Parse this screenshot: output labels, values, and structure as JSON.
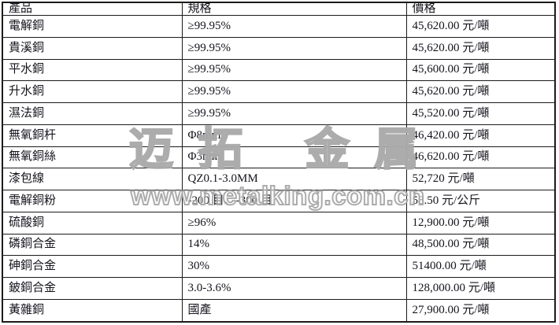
{
  "watermark": {
    "brand": "迈拓 金属",
    "url": "www.metalking.com.cn"
  },
  "colors": {
    "table_border": "#1b1b1b",
    "text": "#14141c",
    "watermark_gray": "#a8a8a8",
    "background": "#ffffff"
  },
  "table": {
    "columns": [
      "產品",
      "規格",
      "價格"
    ],
    "rows": [
      {
        "product": "電解銅",
        "spec": "≥99.95%",
        "price": "45,620.00 元/噸"
      },
      {
        "product": "貴溪銅",
        "spec": "≥99.95%",
        "price": "45,620.00 元/噸"
      },
      {
        "product": "平水銅",
        "spec": "≥99.95%",
        "price": "45,600.00 元/噸"
      },
      {
        "product": "升水銅",
        "spec": "≥99.95%",
        "price": "45,620.00 元/噸"
      },
      {
        "product": "濕法銅",
        "spec": "≥99.95%",
        "price": "45,520.00 元/噸"
      },
      {
        "product": "無氧銅杆",
        "spec": "Φ8mm",
        "price": "46,420.00 元/噸"
      },
      {
        "product": "無氧銅絲",
        "spec": "Φ3mm",
        "price": "46,620.00 元/噸"
      },
      {
        "product": "漆包線",
        "spec": "QZ0.1-3.0MM",
        "price": "52,720 元/噸"
      },
      {
        "product": "電解銅粉",
        "spec": "-200 目、-300 目",
        "price": "58.50 元/公斤"
      },
      {
        "product": "硫酸銅",
        "spec": "≥96%",
        "price": "12,900.00 元/噸"
      },
      {
        "product": "磷銅合金",
        "spec": "14%",
        "price": "48,500.00 元/噸"
      },
      {
        "product": "砷銅合金",
        "spec": "30%",
        "price": "51400.00 元/噸"
      },
      {
        "product": "鈹銅合金",
        "spec": "3.0-3.6%",
        "price": "128,000.00 元/噸"
      },
      {
        "product": "黃雜銅",
        "spec": "國產",
        "price": "27,900.00 元/噸"
      }
    ]
  }
}
